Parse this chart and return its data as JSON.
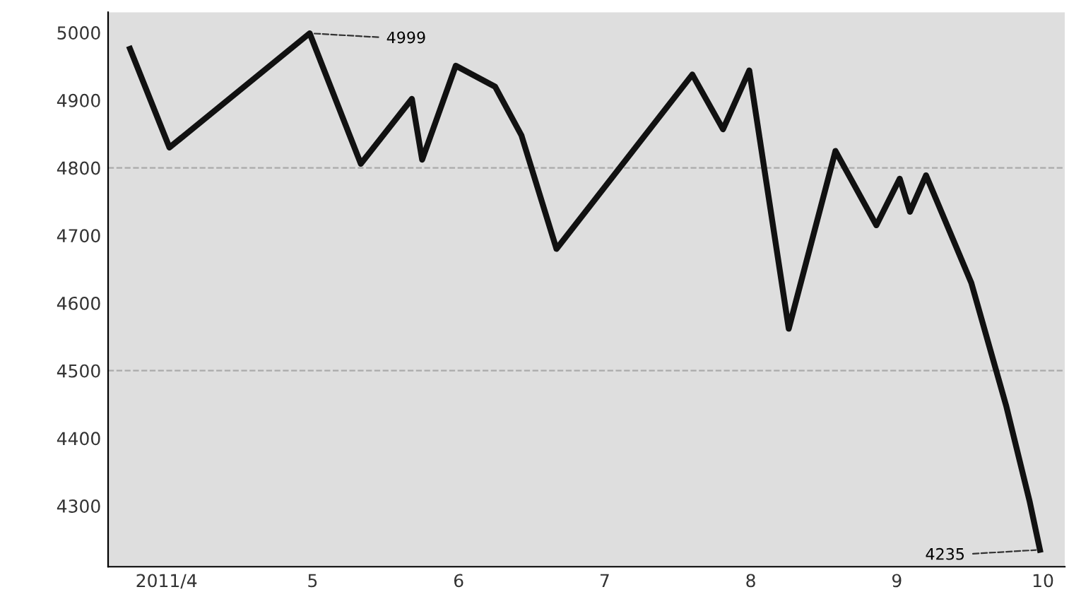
{
  "chart_data": {
    "type": "line",
    "x": [
      3.75,
      4.02,
      4.98,
      5.33,
      5.68,
      5.75,
      5.98,
      6.25,
      6.43,
      6.67,
      7.6,
      7.81,
      7.99,
      8.26,
      8.58,
      8.86,
      9.02,
      9.09,
      9.2,
      9.51,
      9.75,
      9.91,
      9.98
    ],
    "series": [
      {
        "color": "#111111",
        "values": [
          4976,
          4830,
          4999,
          4806,
          4902,
          4812,
          4951,
          4920,
          4848,
          4680,
          4938,
          4857,
          4944,
          4562,
          4825,
          4715,
          4784,
          4735,
          4789,
          4630,
          4447,
          4306,
          4235
        ]
      }
    ],
    "xlim": [
      3.6,
      10.15
    ],
    "xticks": [
      {
        "value": 4,
        "label": "2011/4"
      },
      5,
      6,
      7,
      8,
      9,
      10
    ],
    "ylim": [
      4210,
      5030
    ],
    "yticks": [
      4300,
      4400,
      4500,
      4600,
      4700,
      4800,
      4900,
      5000
    ],
    "ref_lines": [
      {
        "axis": "y",
        "value": 4800,
        "color": "#aaaaaa",
        "line_style": "dashed"
      },
      {
        "axis": "y",
        "value": 4500,
        "color": "#aaaaaa",
        "line_style": "dashed"
      }
    ],
    "annotations": [
      {
        "text": "4999",
        "x": 4.98,
        "y": 4999
      },
      {
        "text": "4235",
        "x": 9.98,
        "y": 4235
      }
    ],
    "grid": false,
    "legend": false,
    "marker": "none",
    "line_style": "solid"
  }
}
